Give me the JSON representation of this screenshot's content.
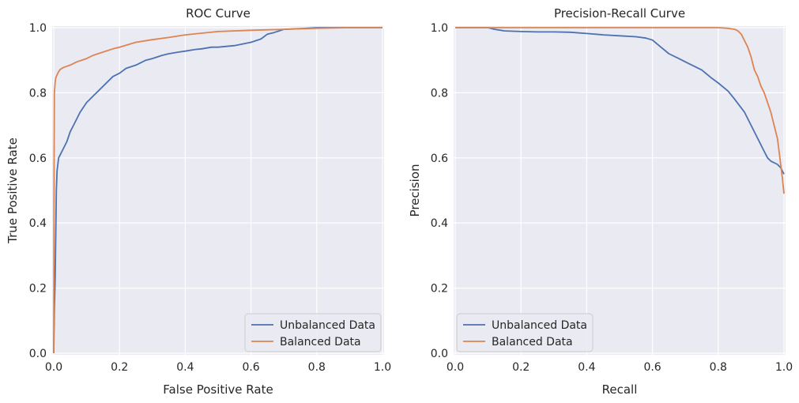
{
  "chart_data": [
    {
      "type": "line",
      "title": "ROC Curve",
      "xlabel": "False Positive Rate",
      "ylabel": "True Positive Rate",
      "xlim": [
        0,
        1
      ],
      "ylim": [
        0,
        1
      ],
      "x_ticks": [
        "0.0",
        "0.2",
        "0.4",
        "0.6",
        "0.8",
        "1.0"
      ],
      "y_ticks": [
        "0.0",
        "0.2",
        "0.4",
        "0.6",
        "0.8",
        "1.0"
      ],
      "grid": true,
      "legend_position": "bottom-right",
      "series": [
        {
          "name": "Unbalanced Data",
          "color": "#4c72b0",
          "x": [
            0,
            0.002,
            0.004,
            0.006,
            0.008,
            0.01,
            0.015,
            0.02,
            0.03,
            0.04,
            0.05,
            0.06,
            0.08,
            0.1,
            0.12,
            0.15,
            0.18,
            0.2,
            0.22,
            0.25,
            0.28,
            0.3,
            0.33,
            0.35,
            0.38,
            0.4,
            0.43,
            0.45,
            0.48,
            0.5,
            0.55,
            0.6,
            0.63,
            0.65,
            0.67,
            0.7,
            0.75,
            0.8,
            0.85,
            0.9,
            1.0
          ],
          "y": [
            0,
            0.14,
            0.22,
            0.35,
            0.5,
            0.56,
            0.6,
            0.61,
            0.63,
            0.65,
            0.68,
            0.7,
            0.74,
            0.77,
            0.79,
            0.82,
            0.85,
            0.86,
            0.875,
            0.885,
            0.9,
            0.905,
            0.915,
            0.92,
            0.925,
            0.928,
            0.933,
            0.935,
            0.94,
            0.94,
            0.945,
            0.955,
            0.965,
            0.98,
            0.985,
            0.995,
            0.997,
            1.0,
            1.0,
            1.0,
            1.0
          ]
        },
        {
          "name": "Balanced Data",
          "color": "#dd8452",
          "x": [
            0,
            0.001,
            0.002,
            0.004,
            0.006,
            0.008,
            0.01,
            0.015,
            0.02,
            0.03,
            0.05,
            0.07,
            0.1,
            0.12,
            0.15,
            0.18,
            0.2,
            0.25,
            0.3,
            0.35,
            0.4,
            0.5,
            0.6,
            0.7,
            0.8,
            0.9,
            1.0
          ],
          "y": [
            0,
            0.55,
            0.8,
            0.83,
            0.845,
            0.85,
            0.855,
            0.865,
            0.872,
            0.878,
            0.885,
            0.895,
            0.905,
            0.915,
            0.925,
            0.935,
            0.94,
            0.955,
            0.963,
            0.97,
            0.978,
            0.988,
            0.992,
            0.995,
            0.998,
            1.0,
            1.0
          ]
        }
      ]
    },
    {
      "type": "line",
      "title": "Precision-Recall Curve",
      "xlabel": "Recall",
      "ylabel": "Precision",
      "xlim": [
        0,
        1
      ],
      "ylim": [
        0,
        1
      ],
      "x_ticks": [
        "0.0",
        "0.2",
        "0.4",
        "0.6",
        "0.8",
        "1.0"
      ],
      "y_ticks": [
        "0.0",
        "0.2",
        "0.4",
        "0.6",
        "0.8",
        "1.0"
      ],
      "grid": true,
      "legend_position": "bottom-left",
      "series": [
        {
          "name": "Unbalanced Data",
          "color": "#4c72b0",
          "x": [
            0,
            0.1,
            0.12,
            0.15,
            0.2,
            0.25,
            0.3,
            0.35,
            0.4,
            0.45,
            0.5,
            0.55,
            0.58,
            0.6,
            0.62,
            0.65,
            0.68,
            0.7,
            0.72,
            0.75,
            0.78,
            0.8,
            0.83,
            0.85,
            0.88,
            0.9,
            0.92,
            0.94,
            0.95,
            0.96,
            0.98,
            0.99,
            1.0
          ],
          "y": [
            1.0,
            1.0,
            0.995,
            0.99,
            0.988,
            0.987,
            0.987,
            0.986,
            0.982,
            0.978,
            0.975,
            0.972,
            0.968,
            0.962,
            0.945,
            0.92,
            0.905,
            0.895,
            0.885,
            0.87,
            0.845,
            0.83,
            0.805,
            0.78,
            0.74,
            0.7,
            0.66,
            0.62,
            0.6,
            0.59,
            0.58,
            0.57,
            0.55
          ]
        },
        {
          "name": "Balanced Data",
          "color": "#dd8452",
          "x": [
            0,
            0.1,
            0.2,
            0.3,
            0.4,
            0.5,
            0.6,
            0.7,
            0.8,
            0.83,
            0.85,
            0.86,
            0.87,
            0.88,
            0.89,
            0.9,
            0.91,
            0.92,
            0.93,
            0.94,
            0.95,
            0.96,
            0.97,
            0.98,
            0.985,
            0.99,
            0.995,
            1.0
          ],
          "y": [
            1.0,
            1.0,
            1.0,
            1.0,
            1.0,
            1.0,
            1.0,
            1.0,
            1.0,
            0.998,
            0.995,
            0.99,
            0.98,
            0.96,
            0.94,
            0.91,
            0.87,
            0.85,
            0.82,
            0.8,
            0.77,
            0.74,
            0.7,
            0.66,
            0.62,
            0.58,
            0.54,
            0.49
          ]
        }
      ]
    }
  ]
}
